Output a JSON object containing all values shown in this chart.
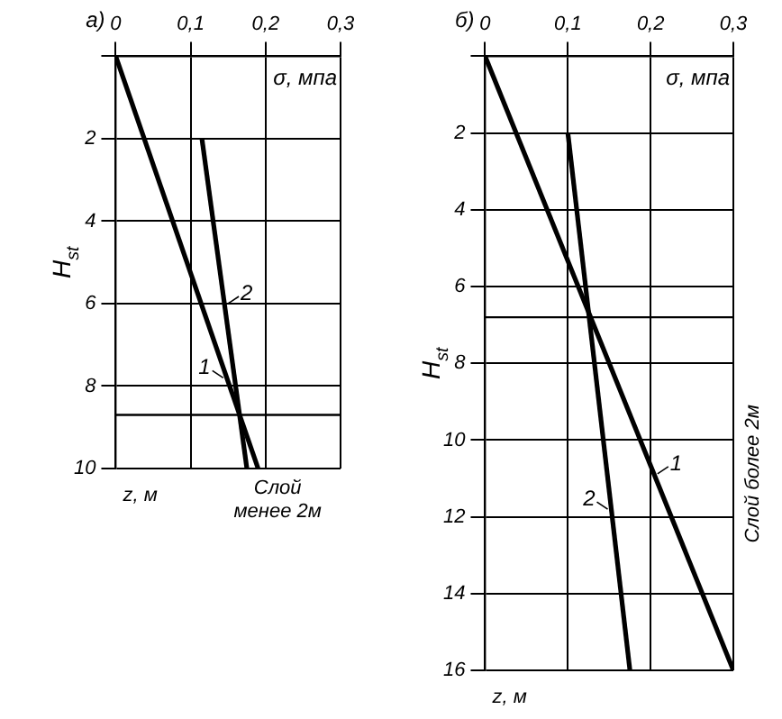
{
  "chart_data": [
    {
      "type": "line",
      "title": "а)",
      "xlabel": "σ, мпа",
      "ylabel": "H$_{st}$",
      "xlim": [
        0,
        0.3
      ],
      "xticks": [
        0,
        {
          "value": 0.1,
          "label": "0,1"
        },
        {
          "value": 0.2,
          "label": "0,2"
        },
        {
          "value": 0.3,
          "label": "0,3"
        }
      ],
      "ylim": [
        10,
        0
      ],
      "yticks": [
        {
          "value": 0,
          "label": null
        },
        2,
        4,
        6,
        8,
        10
      ],
      "grid": true,
      "marker": "none",
      "series": [
        {
          "name": "1",
          "color": "#000000",
          "x": [
            0,
            0.19
          ],
          "values": [
            0,
            10
          ]
        },
        {
          "name": "2",
          "color": "#000000",
          "x": [
            0.115,
            0.175
          ],
          "values": [
            2,
            10
          ]
        }
      ],
      "ref_lines": [
        {
          "axis": "y",
          "value": 8.7
        }
      ],
      "annotations": [
        "z, м",
        "Слой менее 2м"
      ]
    },
    {
      "type": "line",
      "title": "б)",
      "xlabel": "σ, мпа",
      "ylabel": "H$_{st}$",
      "xlim": [
        0,
        0.3
      ],
      "xticks": [
        0,
        {
          "value": 0.1,
          "label": "0,1"
        },
        {
          "value": 0.2,
          "label": "0,2"
        },
        {
          "value": 0.3,
          "label": "0,3"
        }
      ],
      "ylim": [
        16,
        0
      ],
      "yticks": [
        {
          "value": 0,
          "label": null
        },
        2,
        4,
        6,
        8,
        10,
        12,
        14,
        16
      ],
      "grid": true,
      "marker": "none",
      "series": [
        {
          "name": "1",
          "color": "#000000",
          "x": [
            0,
            0.3
          ],
          "values": [
            0,
            16
          ]
        },
        {
          "name": "2",
          "color": "#000000",
          "x": [
            0.1,
            0.175
          ],
          "values": [
            2,
            16
          ]
        }
      ],
      "ref_lines": [
        {
          "axis": "y",
          "value": 6.8
        }
      ],
      "annotations": [
        "z, м",
        "Слой более 2м"
      ]
    }
  ]
}
